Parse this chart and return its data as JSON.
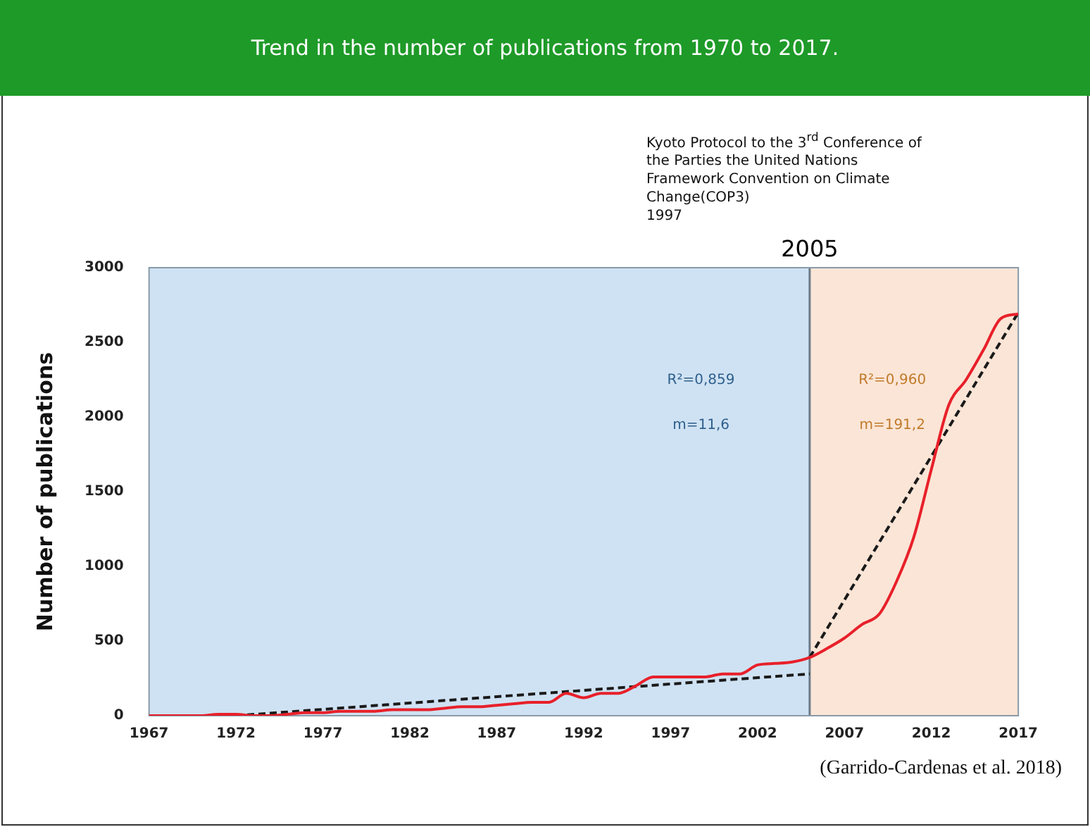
{
  "chart_data": {
    "type": "line",
    "title": "Trend in the number of publications from 1970 to 2017.",
    "ylabel": "Number of publications",
    "xlim": [
      1967,
      2017
    ],
    "xticks": [
      1967,
      1972,
      1977,
      1982,
      1987,
      1992,
      1997,
      2002,
      2007,
      2012,
      2017
    ],
    "ylim": [
      0,
      3000
    ],
    "yticks": [
      0,
      500,
      1000,
      1500,
      2000,
      2500,
      3000
    ],
    "grid": false,
    "legend": false,
    "marker": "none",
    "series": [
      {
        "color": "#e8202a",
        "line_style": "solid",
        "x": [
          1967,
          1968,
          1969,
          1970,
          1971,
          1972,
          1973,
          1974,
          1975,
          1976,
          1977,
          1978,
          1979,
          1980,
          1981,
          1982,
          1983,
          1984,
          1985,
          1986,
          1987,
          1988,
          1989,
          1990,
          1991,
          1992,
          1993,
          1994,
          1995,
          1996,
          1997,
          1998,
          1999,
          2000,
          2001,
          2002,
          2003,
          2004,
          2005,
          2006,
          2007,
          2008,
          2009,
          2010,
          2011,
          2012,
          2013,
          2014,
          2015,
          2016,
          2017
        ],
        "values": [
          0,
          0,
          0,
          0,
          10,
          10,
          0,
          0,
          10,
          20,
          20,
          30,
          30,
          30,
          40,
          40,
          40,
          50,
          60,
          60,
          70,
          80,
          90,
          90,
          150,
          120,
          150,
          150,
          200,
          260,
          260,
          260,
          260,
          280,
          280,
          340,
          350,
          360,
          390,
          450,
          520,
          610,
          680,
          900,
          1200,
          1650,
          2080,
          2250,
          2450,
          2660,
          2690
        ]
      },
      {
        "type": "line",
        "color": "#1a1a1a",
        "line_style": "dashed",
        "x": [
          1972,
          2005
        ],
        "values": [
          0,
          280
        ]
      },
      {
        "type": "line",
        "color": "#1a1a1a",
        "line_style": "dashed",
        "x": [
          2005,
          2017
        ],
        "values": [
          390,
          2700
        ]
      }
    ],
    "bands": [
      {
        "axis": "x",
        "from": 1967,
        "to": 2005,
        "color": "#cfe2f3"
      },
      {
        "axis": "x",
        "from": 2005,
        "to": 2017,
        "color": "#fbe5d6"
      }
    ],
    "ref_lines": [
      {
        "axis": "x",
        "value": 2005,
        "label": "2005",
        "color": "#6b7b88"
      }
    ],
    "annotations": [
      "Kyoto Protocol to the 3$^{rd}$ Conference of the Parties the United Nations Framework Convention on Climate Change(COP3)\n1997",
      "R²=0,859",
      "m=11,6",
      "R²=0,960",
      "m=191,2",
      "(Garrido-Cardenas et al. 2018)"
    ]
  }
}
